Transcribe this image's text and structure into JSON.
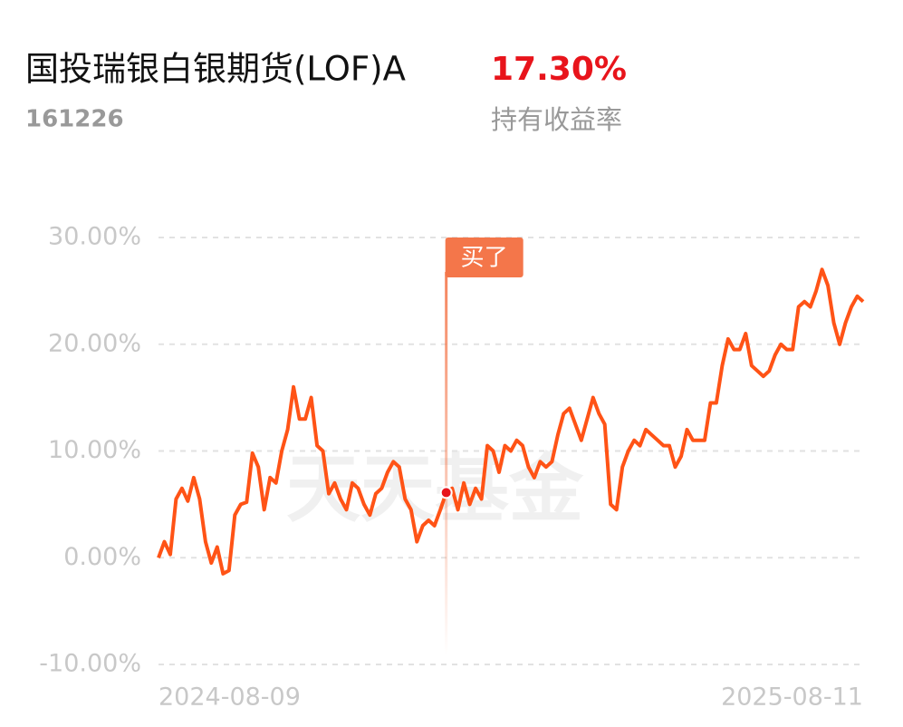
{
  "header": {
    "title": "国投瑞银白银期货(LOF)A",
    "code": "161226",
    "return_value": "17.30%",
    "return_label": "持有收益率"
  },
  "chart_data": {
    "type": "line",
    "watermark": "天天基金",
    "categories": [
      "2024-08-09",
      null,
      null,
      null,
      null,
      null,
      null,
      null,
      null,
      null,
      null,
      null,
      null,
      null,
      null,
      null,
      null,
      null,
      null,
      null,
      null,
      null,
      null,
      null,
      null,
      null,
      null,
      null,
      null,
      null,
      null,
      null,
      null,
      null,
      null,
      null,
      null,
      null,
      null,
      null,
      null,
      null,
      null,
      null,
      null,
      null,
      null,
      null,
      null,
      null,
      null,
      null,
      null,
      null,
      null,
      null,
      null,
      null,
      null,
      null,
      null,
      null,
      null,
      null,
      null,
      null,
      null,
      null,
      null,
      null,
      null,
      null,
      null,
      null,
      null,
      null,
      null,
      null,
      null,
      null,
      null,
      null,
      null,
      null,
      null,
      null,
      null,
      null,
      null,
      null,
      null,
      null,
      null,
      null,
      null,
      null,
      null,
      null,
      null,
      null,
      null,
      null,
      null,
      null,
      null,
      null,
      null,
      null,
      null,
      null,
      null,
      null,
      null,
      null,
      null,
      null,
      null,
      null,
      null,
      null,
      "2025-08-11"
    ],
    "series": [
      {
        "color": "#ff5316",
        "values": [
          0.0,
          1.5,
          0.3,
          5.5,
          6.5,
          5.3,
          7.5,
          5.5,
          1.5,
          -0.5,
          1.0,
          -1.5,
          -1.2,
          4.0,
          5.0,
          5.2,
          9.8,
          8.5,
          4.5,
          7.5,
          7.0,
          10.0,
          12.0,
          16.0,
          13.0,
          13.0,
          15.0,
          10.5,
          10.0,
          6.0,
          7.0,
          5.5,
          4.5,
          7.0,
          6.5,
          5.0,
          4.0,
          6.0,
          6.5,
          8.0,
          9.0,
          8.5,
          5.5,
          4.5,
          1.5,
          3.0,
          3.5,
          3.0,
          4.5,
          6.1,
          6.5,
          4.5,
          7.0,
          5.0,
          6.5,
          5.5,
          10.5,
          10.0,
          8.0,
          10.5,
          10.0,
          11.0,
          10.5,
          8.5,
          7.5,
          9.0,
          8.5,
          9.0,
          11.5,
          13.5,
          14.0,
          12.5,
          11.0,
          13.0,
          15.0,
          13.5,
          12.5,
          5.0,
          4.5,
          8.5,
          10.0,
          11.0,
          10.5,
          12.0,
          11.5,
          11.0,
          10.5,
          10.5,
          8.5,
          9.5,
          12.0,
          11.0,
          11.0,
          11.0,
          14.5,
          14.5,
          18.0,
          20.5,
          19.5,
          19.5,
          21.0,
          18.0,
          17.5,
          17.0,
          17.5,
          19.0,
          20.0,
          19.5,
          19.5,
          23.5,
          24.0,
          23.5,
          25.0,
          27.0,
          25.5,
          22.0,
          20.0,
          22.0,
          23.5,
          24.5,
          24.0
        ]
      }
    ],
    "annotation": {
      "text": "买了",
      "value": 6.1,
      "color": "#f4764a"
    },
    "ylim": [
      -10,
      30
    ],
    "yticks": [
      {
        "value": -10,
        "label": "-10.00%"
      },
      {
        "value": 0,
        "label": "0.00%"
      },
      {
        "value": 10,
        "label": "10.00%"
      },
      {
        "value": 20,
        "label": "20.00%"
      },
      {
        "value": 30,
        "label": "30.00%"
      }
    ],
    "grid": true
  }
}
